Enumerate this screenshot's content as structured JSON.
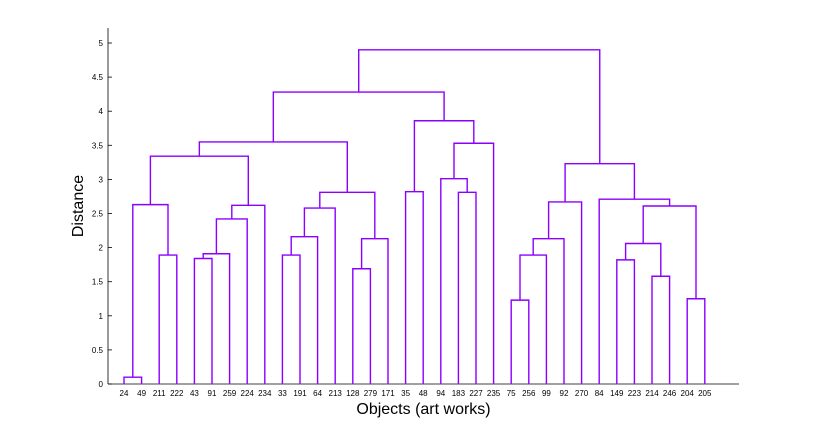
{
  "chart_data": {
    "type": "dendrogram",
    "xlabel": "Objects (art works)",
    "ylabel": "Distance",
    "ylim": [
      0,
      5.05
    ],
    "yticks": [
      0,
      0.5,
      1,
      1.5,
      2,
      2.5,
      3,
      3.5,
      4,
      4.5,
      5
    ],
    "ytick_labels": [
      "0",
      "0.5",
      "1",
      "1.5",
      "2",
      "2.5",
      "3",
      "3.5",
      "4",
      "4.5",
      "5"
    ],
    "leaves": [
      "24",
      "49",
      "211",
      "222",
      "43",
      "91",
      "259",
      "224",
      "234",
      "33",
      "191",
      "64",
      "213",
      "128",
      "279",
      "171",
      "35",
      "48",
      "94",
      "183",
      "227",
      "235",
      "75",
      "256",
      "99",
      "92",
      "270",
      "84",
      "149",
      "223",
      "214",
      "246",
      "204",
      "205"
    ],
    "link_color": "#8B00FF",
    "merges": [
      {
        "id": "m1",
        "left": "L:24",
        "right": "L:49",
        "height": 0.1
      },
      {
        "id": "m2",
        "left": "L:211",
        "right": "L:222",
        "height": 1.89
      },
      {
        "id": "m3",
        "left": "m1",
        "right": "m2",
        "height": 2.63
      },
      {
        "id": "m4",
        "left": "L:43",
        "right": "L:91",
        "height": 1.84
      },
      {
        "id": "m5",
        "left": "m4",
        "right": "L:259",
        "height": 1.91
      },
      {
        "id": "m6",
        "left": "m5",
        "right": "L:224",
        "height": 2.42
      },
      {
        "id": "m7",
        "left": "m6",
        "right": "L:234",
        "height": 2.62
      },
      {
        "id": "m8",
        "left": "m3",
        "right": "m7",
        "height": 3.34
      },
      {
        "id": "m9",
        "left": "L:33",
        "right": "L:191",
        "height": 1.89
      },
      {
        "id": "m10",
        "left": "m9",
        "right": "L:64",
        "height": 2.16
      },
      {
        "id": "m11",
        "left": "m10",
        "right": "L:213",
        "height": 2.58
      },
      {
        "id": "m12",
        "left": "L:128",
        "right": "L:279",
        "height": 1.69
      },
      {
        "id": "m13",
        "left": "m12",
        "right": "L:171",
        "height": 2.13
      },
      {
        "id": "m14",
        "left": "m11",
        "right": "m13",
        "height": 2.81
      },
      {
        "id": "m15",
        "left": "m8",
        "right": "m14",
        "height": 3.55
      },
      {
        "id": "m16",
        "left": "L:35",
        "right": "L:48",
        "height": 2.82
      },
      {
        "id": "m17",
        "left": "L:183",
        "right": "L:227",
        "height": 2.81
      },
      {
        "id": "m18",
        "left": "L:94",
        "right": "m17",
        "height": 3.01
      },
      {
        "id": "m19",
        "left": "m18",
        "right": "L:235",
        "height": 3.53
      },
      {
        "id": "m20",
        "left": "m16",
        "right": "m19",
        "height": 3.86
      },
      {
        "id": "m21",
        "left": "m15",
        "right": "m20",
        "height": 4.28
      },
      {
        "id": "m22",
        "left": "L:75",
        "right": "L:256",
        "height": 1.23
      },
      {
        "id": "m23",
        "left": "m22",
        "right": "L:99",
        "height": 1.89
      },
      {
        "id": "m24",
        "left": "m23",
        "right": "L:92",
        "height": 2.13
      },
      {
        "id": "m25",
        "left": "m24",
        "right": "L:270",
        "height": 2.67
      },
      {
        "id": "m26",
        "left": "L:149",
        "right": "L:223",
        "height": 1.82
      },
      {
        "id": "m27",
        "left": "L:214",
        "right": "L:246",
        "height": 1.58
      },
      {
        "id": "m28",
        "left": "m26",
        "right": "m27",
        "height": 2.06
      },
      {
        "id": "m29",
        "left": "L:204",
        "right": "L:205",
        "height": 1.25
      },
      {
        "id": "m30",
        "left": "m28",
        "right": "m29",
        "height": 2.61
      },
      {
        "id": "m31",
        "left": "L:84",
        "right": "m30",
        "height": 2.71
      },
      {
        "id": "m32",
        "left": "m25",
        "right": "m31",
        "height": 3.23
      },
      {
        "id": "m33",
        "left": "m21",
        "right": "m32",
        "height": 4.9
      }
    ]
  }
}
